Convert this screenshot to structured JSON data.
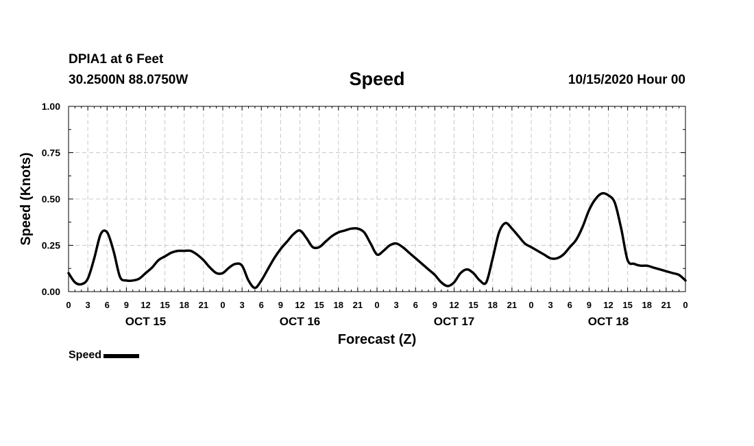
{
  "header": {
    "station": "DPIA1 at 6 Feet",
    "location": "30.2500N 88.0750W",
    "title": "Speed",
    "issued": "10/15/2020 Hour 00"
  },
  "legend": {
    "label": "Speed"
  },
  "chart_data": {
    "type": "line",
    "title": "Speed",
    "xlabel": "Forecast (Z)",
    "ylabel": "Speed (Knots)",
    "ylim": [
      0,
      1
    ],
    "xlim": [
      0,
      96
    ],
    "grid": true,
    "yticks": [
      "0.00",
      "0.25",
      "0.50",
      "0.75",
      "1.00"
    ],
    "ytick_values": [
      0,
      0.25,
      0.5,
      0.75,
      1.0
    ],
    "xtick_labels": [
      "0",
      "3",
      "6",
      "9",
      "12",
      "15",
      "18",
      "21",
      "0",
      "3",
      "6",
      "9",
      "12",
      "15",
      "18",
      "21",
      "0",
      "3",
      "6",
      "9",
      "12",
      "15",
      "18",
      "21",
      "0",
      "3",
      "6",
      "9",
      "12",
      "15",
      "18",
      "21",
      "0"
    ],
    "day_labels": [
      {
        "label": "OCT 15",
        "hour": 12
      },
      {
        "label": "OCT 16",
        "hour": 36
      },
      {
        "label": "OCT 17",
        "hour": 60
      },
      {
        "label": "OCT 18",
        "hour": 84
      }
    ],
    "series": [
      {
        "name": "Speed",
        "color": "#000000",
        "x": [
          0,
          1,
          2,
          3,
          4,
          5,
          6,
          7,
          8,
          9,
          10,
          11,
          12,
          13,
          14,
          15,
          16,
          17,
          18,
          19,
          20,
          21,
          22,
          23,
          24,
          25,
          26,
          27,
          28,
          29,
          30,
          31,
          32,
          33,
          34,
          35,
          36,
          37,
          38,
          39,
          40,
          41,
          42,
          43,
          44,
          45,
          46,
          47,
          48,
          49,
          50,
          51,
          52,
          53,
          54,
          55,
          56,
          57,
          58,
          59,
          60,
          61,
          62,
          63,
          64,
          65,
          66,
          67,
          68,
          69,
          70,
          71,
          72,
          73,
          74,
          75,
          76,
          77,
          78,
          79,
          80,
          81,
          82,
          83,
          84,
          85,
          86,
          87,
          88,
          89,
          90,
          91,
          92,
          93,
          94,
          95,
          96
        ],
        "values": [
          0.1,
          0.05,
          0.04,
          0.07,
          0.18,
          0.31,
          0.32,
          0.22,
          0.08,
          0.06,
          0.06,
          0.07,
          0.1,
          0.13,
          0.17,
          0.19,
          0.21,
          0.22,
          0.22,
          0.22,
          0.2,
          0.17,
          0.13,
          0.1,
          0.1,
          0.13,
          0.15,
          0.14,
          0.06,
          0.02,
          0.06,
          0.12,
          0.18,
          0.23,
          0.27,
          0.31,
          0.33,
          0.29,
          0.24,
          0.24,
          0.27,
          0.3,
          0.32,
          0.33,
          0.34,
          0.34,
          0.32,
          0.26,
          0.2,
          0.22,
          0.25,
          0.26,
          0.24,
          0.21,
          0.18,
          0.15,
          0.12,
          0.09,
          0.05,
          0.03,
          0.05,
          0.1,
          0.12,
          0.1,
          0.06,
          0.05,
          0.18,
          0.32,
          0.37,
          0.34,
          0.3,
          0.26,
          0.24,
          0.22,
          0.2,
          0.18,
          0.18,
          0.2,
          0.24,
          0.28,
          0.35,
          0.44,
          0.5,
          0.53,
          0.52,
          0.48,
          0.34,
          0.17,
          0.15,
          0.14,
          0.14,
          0.13,
          0.12,
          0.11,
          0.1,
          0.09,
          0.06
        ]
      }
    ]
  }
}
